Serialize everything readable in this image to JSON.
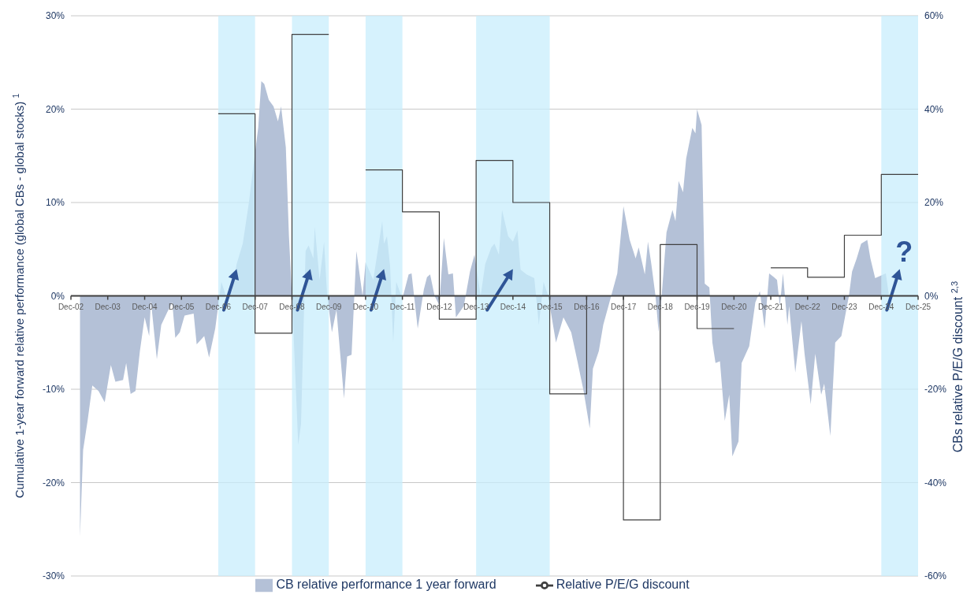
{
  "chart_data": {
    "type": "area",
    "ylabel": "Cumulative 1-year forward relative performance (global CBs - global stocks) $^{1}$",
    "y2label": "CBs relative P/E/G discount $^{2,3}$",
    "xlim": [
      "2002-12-01",
      "2025-12-01"
    ],
    "xticks": [
      {
        "value": "2002-12-01",
        "label": "Dec-02"
      },
      {
        "value": "2003-12-01",
        "label": "Dec-03"
      },
      {
        "value": "2004-12-01",
        "label": "Dec-04"
      },
      {
        "value": "2005-12-01",
        "label": "Dec-05"
      },
      {
        "value": "2006-12-01",
        "label": "Dec-06"
      },
      {
        "value": "2007-12-01",
        "label": "Dec-07"
      },
      {
        "value": "2008-12-01",
        "label": "Dec-08"
      },
      {
        "value": "2009-12-01",
        "label": "Dec-09"
      },
      {
        "value": "2010-12-01",
        "label": "Dec-10"
      },
      {
        "value": "2011-12-01",
        "label": "Dec-11"
      },
      {
        "value": "2012-12-01",
        "label": "Dec-12"
      },
      {
        "value": "2013-12-01",
        "label": "Dec-13"
      },
      {
        "value": "2014-12-01",
        "label": "Dec-14"
      },
      {
        "value": "2015-12-01",
        "label": "Dec-15"
      },
      {
        "value": "2016-12-01",
        "label": "Dec-16"
      },
      {
        "value": "2017-12-01",
        "label": "Dec-17"
      },
      {
        "value": "2018-12-01",
        "label": "Dec-18"
      },
      {
        "value": "2019-12-01",
        "label": "Dec-19"
      },
      {
        "value": "2020-12-01",
        "label": "Dec-20"
      },
      {
        "value": "2021-12-01",
        "label": "Dec-21"
      },
      {
        "value": "2022-12-01",
        "label": "Dec-22"
      },
      {
        "value": "2023-12-01",
        "label": "Dec-23"
      },
      {
        "value": "2024-12-01",
        "label": "Dec-24"
      },
      {
        "value": "2025-12-01",
        "label": "Dec-25"
      }
    ],
    "ylim": [
      -30,
      30
    ],
    "yticks": [
      {
        "value": -30,
        "label": "-30%"
      },
      {
        "value": -20,
        "label": "-20%"
      },
      {
        "value": -10,
        "label": "-10%"
      },
      {
        "value": 0,
        "label": "0%"
      },
      {
        "value": 10,
        "label": "10%"
      },
      {
        "value": 20,
        "label": "20%"
      },
      {
        "value": 30,
        "label": "30%"
      }
    ],
    "y2lim": [
      -60,
      60
    ],
    "y2ticks": [
      {
        "value": -60,
        "label": "-60%"
      },
      {
        "value": -40,
        "label": "-40%"
      },
      {
        "value": -20,
        "label": "-20%"
      },
      {
        "value": 0,
        "label": "0%"
      },
      {
        "value": 20,
        "label": "20%"
      },
      {
        "value": 40,
        "label": "40%"
      },
      {
        "value": 60,
        "label": "60%"
      }
    ],
    "grid": "y",
    "legend": "bottom",
    "series": [
      {
        "name": "CB relative performance 1 year forward",
        "type": "area",
        "color": "#b4c1d7",
        "x": [
          "2003-03-01",
          "2003-04-01",
          "2003-05-15",
          "2003-07-01",
          "2003-09-01",
          "2003-11-01",
          "2004-01-01",
          "2004-02-15",
          "2004-05-01",
          "2004-06-01",
          "2004-07-15",
          "2004-09-01",
          "2004-10-15",
          "2004-12-01",
          "2005-01-15",
          "2005-02-01",
          "2005-04-01",
          "2005-05-15",
          "2005-07-15",
          "2005-09-01",
          "2005-10-01",
          "2005-11-15",
          "2006-01-01",
          "2006-04-01",
          "2006-05-01",
          "2006-07-15",
          "2006-09-01",
          "2006-11-01",
          "2007-01-01",
          "2007-02-15",
          "2007-04-15",
          "2007-06-01",
          "2007-08-01",
          "2007-10-01",
          "2007-11-15",
          "2008-01-01",
          "2008-02-01",
          "2008-03-01",
          "2008-04-15",
          "2008-06-01",
          "2008-07-15",
          "2008-08-15",
          "2008-10-01",
          "2008-11-01",
          "2008-12-01",
          "2009-02-01",
          "2009-03-01",
          "2009-04-15",
          "2009-05-15",
          "2009-07-01",
          "2009-07-15",
          "2009-09-01",
          "2009-10-15",
          "2009-11-15",
          "2010-01-01",
          "2010-02-15",
          "2010-05-01",
          "2010-06-01",
          "2010-07-15",
          "2010-09-01",
          "2010-11-01",
          "2010-12-01",
          "2011-02-15",
          "2011-05-15",
          "2011-06-01",
          "2011-07-01",
          "2011-08-01",
          "2011-09-01",
          "2011-10-01",
          "2011-12-01",
          "2012-02-01",
          "2012-03-01",
          "2012-05-01",
          "2012-07-01",
          "2012-08-01",
          "2012-09-01",
          "2012-10-15",
          "2012-12-01",
          "2013-01-15",
          "2013-03-01",
          "2013-04-15",
          "2013-05-15",
          "2013-08-01",
          "2013-10-01",
          "2013-11-15",
          "2014-01-15",
          "2014-03-01",
          "2014-05-01",
          "2014-06-01",
          "2014-07-15",
          "2014-08-15",
          "2014-10-15",
          "2014-12-01",
          "2015-01-15",
          "2015-02-15",
          "2015-04-15",
          "2015-07-01",
          "2015-08-15",
          "2015-10-01",
          "2015-11-15",
          "2016-02-01",
          "2016-04-15",
          "2016-07-01",
          "2016-09-01",
          "2016-11-01",
          "2017-01-01",
          "2017-02-01",
          "2017-04-01",
          "2017-05-15",
          "2017-07-15",
          "2017-10-01",
          "2017-12-01",
          "2018-02-01",
          "2018-04-01",
          "2018-05-01",
          "2018-07-01",
          "2018-08-01",
          "2018-09-01",
          "2018-10-15",
          "2018-11-15",
          "2018-12-15",
          "2019-02-01",
          "2019-04-01",
          "2019-05-01",
          "2019-06-01",
          "2019-07-15",
          "2019-08-15",
          "2019-10-15",
          "2019-11-15",
          "2019-12-01",
          "2020-01-15",
          "2020-02-15",
          "2020-04-01",
          "2020-05-01",
          "2020-06-01",
          "2020-07-15",
          "2020-09-01",
          "2020-10-15",
          "2020-11-15",
          "2021-01-15",
          "2021-02-15",
          "2021-05-01",
          "2021-07-01",
          "2021-08-15",
          "2021-10-01",
          "2021-11-15",
          "2022-01-01",
          "2022-02-01",
          "2022-03-01",
          "2022-04-01",
          "2022-05-15",
          "2022-06-01",
          "2022-08-01",
          "2022-10-01",
          "2022-11-01",
          "2023-01-01",
          "2023-02-15",
          "2023-04-15",
          "2023-05-15",
          "2023-07-15",
          "2023-09-01",
          "2023-11-01",
          "2024-01-15",
          "2024-02-15",
          "2024-04-01",
          "2024-05-15",
          "2024-07-15",
          "2024-08-15",
          "2024-10-01",
          "2025-01-15",
          "2025-02-15"
        ],
        "values": [
          -25.8,
          -16.5,
          -13.4,
          -9.6,
          -10.2,
          -11.4,
          -7.4,
          -9.2,
          -9.0,
          -7.2,
          -10.5,
          -10.2,
          -5.9,
          -2.3,
          -4.3,
          -0.5,
          -6.8,
          -3.1,
          -1.7,
          -0.7,
          -4.5,
          -3.9,
          -2.1,
          -1.9,
          -5.2,
          -4.3,
          -6.6,
          -3.5,
          1.5,
          0,
          0.5,
          3.4,
          5.6,
          10,
          14,
          18,
          23,
          22.7,
          21,
          20.3,
          18.7,
          20.3,
          15.9,
          6.4,
          0,
          -16,
          -13.7,
          4.8,
          5.4,
          4,
          7.4,
          1.7,
          5.8,
          0,
          -3.9,
          -1.5,
          -11,
          -6.5,
          -6.3,
          4.8,
          0,
          3.6,
          1.7,
          8,
          5.6,
          6.4,
          3.2,
          -5,
          1.5,
          -0.3,
          2.3,
          2.4,
          -3.5,
          0.7,
          2,
          2.3,
          0,
          -1,
          6.2,
          2.3,
          2.4,
          -2.3,
          -1.1,
          2.6,
          4.4,
          0,
          3.4,
          5.2,
          5.6,
          4.4,
          9.2,
          6.4,
          5.8,
          7,
          2.8,
          2.3,
          1.9,
          -3.1,
          1.5,
          0,
          -5,
          -2.3,
          -3.9,
          -7,
          -10.2,
          -14.2,
          -7.8,
          -5.9,
          -3.1,
          -0.7,
          2.4,
          9.6,
          6,
          4,
          5.2,
          2.3,
          5.8,
          3.6,
          0,
          -3.9,
          0,
          6.8,
          9.2,
          8,
          12.3,
          11.1,
          14.7,
          18,
          17.4,
          20,
          18.3,
          1.3,
          0.9,
          -5,
          -7.2,
          -7,
          -13.4,
          -10.6,
          -17.2,
          -15.6,
          -7.2,
          -5.4,
          -0.7,
          0.5,
          -3.5,
          2.4,
          2,
          1.7,
          -1.1,
          2.4,
          -3.1,
          -1.1,
          -8.2,
          -2.7,
          -6.2,
          -11.6,
          -6.2,
          -10.6,
          -9.4,
          -15,
          -5,
          -4.3,
          0,
          2.6,
          4,
          5.6,
          6,
          4,
          1.9,
          2.4,
          0
        ]
      },
      {
        "name": "Relative P/E/G discount",
        "type": "step",
        "axis": "y2",
        "color": "#404040",
        "x": [
          "2006-12-01",
          "2007-12-01",
          "2008-12-01",
          "2009-12-01",
          "2010-01-01",
          "2010-12-01",
          "2011-12-01",
          "2012-12-01",
          "2013-12-01",
          "2014-12-01",
          "2015-12-01",
          "2016-12-01",
          "2017-12-01",
          "2018-12-01",
          "2019-12-01",
          "2020-12-01",
          "2021-01-01",
          "2021-12-01",
          "2022-12-01",
          "2023-12-01",
          "2024-12-01",
          "2025-12-01"
        ],
        "values": [
          39,
          -8,
          56,
          56,
          null,
          27,
          18,
          -5,
          29,
          20,
          -21,
          0,
          -48,
          11,
          -7,
          -7,
          null,
          6,
          4,
          13,
          26,
          26
        ]
      }
    ],
    "bands": [
      {
        "axis": "x",
        "from": "2006-12-01",
        "to": "2007-12-01",
        "color": "#c8edfc"
      },
      {
        "axis": "x",
        "from": "2008-12-01",
        "to": "2009-12-01",
        "color": "#c8edfc"
      },
      {
        "axis": "x",
        "from": "2010-12-01",
        "to": "2011-12-01",
        "color": "#c8edfc"
      },
      {
        "axis": "x",
        "from": "2013-12-01",
        "to": "2015-12-01",
        "color": "#c8edfc"
      },
      {
        "axis": "x",
        "from": "2024-12-01",
        "to": "2025-12-01",
        "color": "#c8edfc"
      }
    ],
    "annotations": [
      "?"
    ]
  }
}
